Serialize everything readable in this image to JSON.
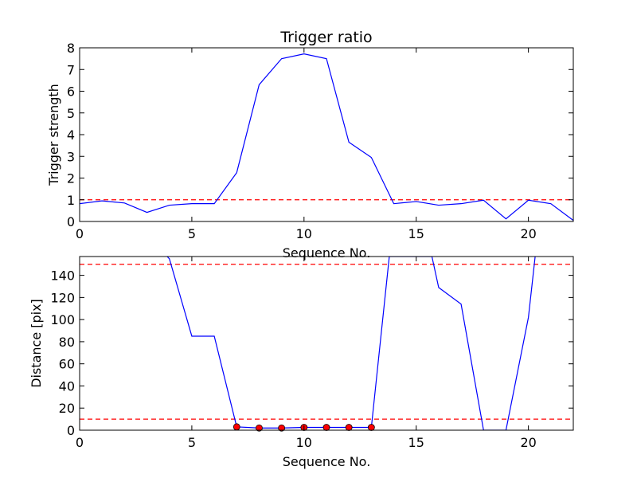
{
  "chart_data": [
    {
      "type": "line",
      "title": "Trigger ratio",
      "xlabel": "Sequence No.",
      "ylabel": "Trigger strength",
      "xlim": [
        0,
        22
      ],
      "ylim": [
        0,
        8
      ],
      "xticks": [
        "0",
        "5",
        "10",
        "15",
        "20"
      ],
      "yticks": [
        "0",
        "1",
        "2",
        "3",
        "4",
        "5",
        "6",
        "7",
        "8"
      ],
      "series": [
        {
          "color": "#0000ff",
          "x": [
            0,
            1,
            2,
            3,
            4,
            5,
            6,
            7,
            8,
            9,
            10,
            11,
            12,
            13,
            14,
            15,
            16,
            17,
            18,
            19,
            20,
            21,
            22
          ],
          "y": [
            0.82,
            0.95,
            0.85,
            0.42,
            0.75,
            0.82,
            0.82,
            2.25,
            6.3,
            7.5,
            7.72,
            7.5,
            3.65,
            2.95,
            0.82,
            0.92,
            0.75,
            0.82,
            0.98,
            0.12,
            0.98,
            0.82,
            0.05
          ]
        }
      ],
      "hlines": [
        {
          "y": 1,
          "color": "#ff0000",
          "style": "dashed"
        }
      ]
    },
    {
      "type": "line",
      "title": "",
      "xlabel": "Sequence No.",
      "ylabel": "Distance [pix]",
      "xlim": [
        0,
        22
      ],
      "ylim": [
        0,
        157
      ],
      "xticks": [
        "0",
        "5",
        "10",
        "15",
        "20"
      ],
      "yticks": [
        "0",
        "20",
        "40",
        "60",
        "80",
        "100",
        "120",
        "140"
      ],
      "series": [
        {
          "color": "#0000ff",
          "x": [
            3.9,
            4,
            5,
            6,
            7,
            8,
            9,
            10,
            11,
            12,
            13,
            13.8,
            15.7,
            16,
            17,
            18,
            19,
            20,
            20.3
          ],
          "y": [
            157,
            155,
            85,
            85,
            3,
            2,
            2,
            2.5,
            2.5,
            2.5,
            2.5,
            157,
            157,
            129,
            114,
            0,
            0,
            102,
            157
          ]
        }
      ],
      "markers": {
        "color": "#ff0000",
        "x": [
          7,
          8,
          9,
          10,
          11,
          12,
          13
        ],
        "y": [
          3,
          2,
          2,
          2.5,
          2.5,
          2.5,
          2.5
        ]
      },
      "hlines": [
        {
          "y": 150,
          "color": "#ff0000",
          "style": "dashed"
        },
        {
          "y": 10,
          "color": "#ff0000",
          "style": "dashed"
        }
      ]
    }
  ]
}
